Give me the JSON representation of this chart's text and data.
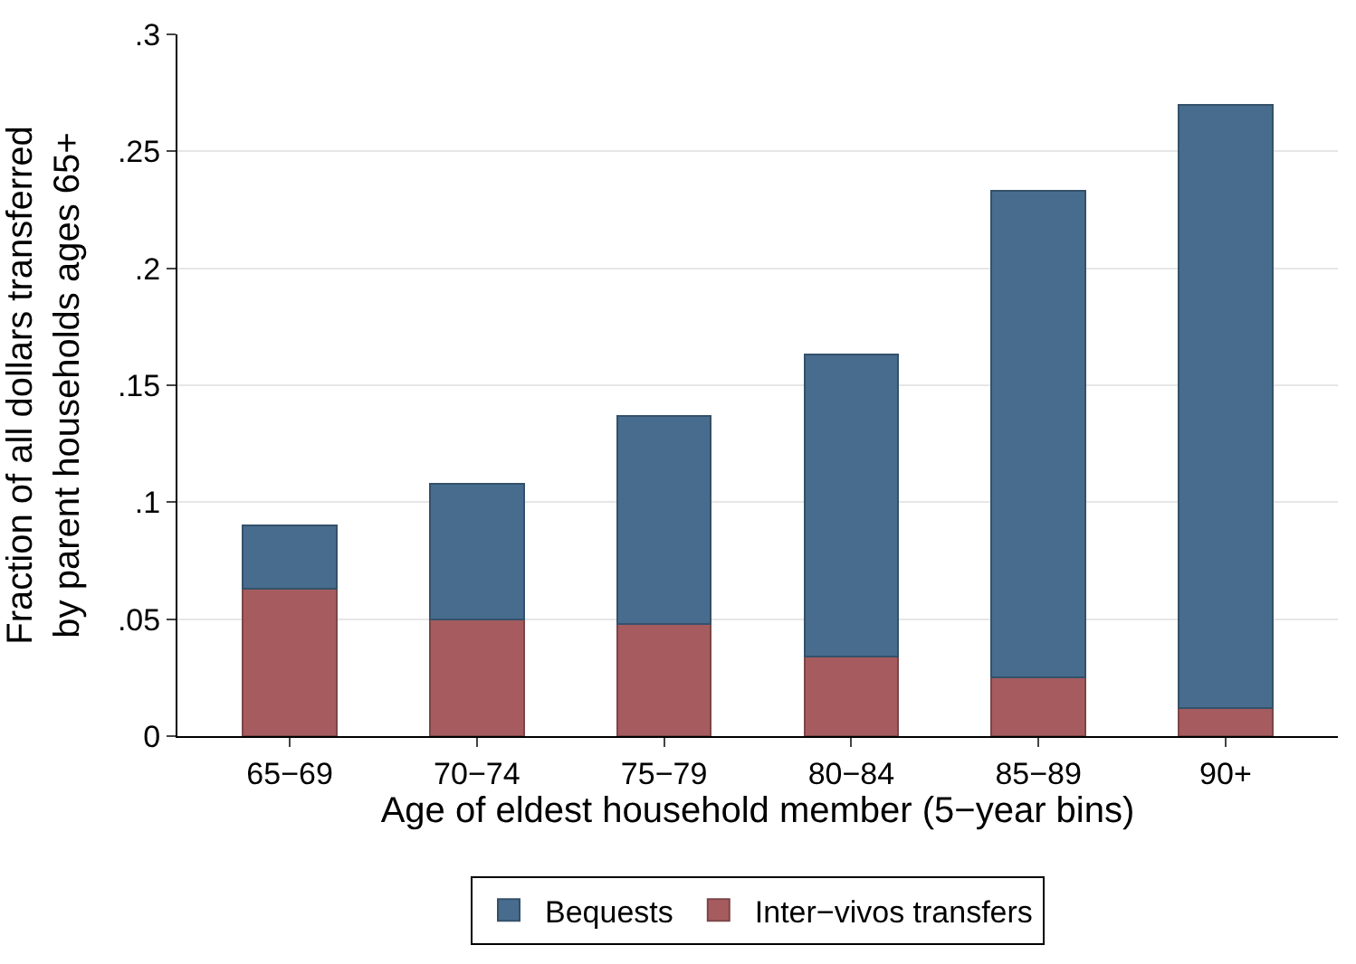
{
  "chart_data": {
    "type": "bar",
    "stacked": true,
    "xlabel": "Age of eldest household member (5−year bins)",
    "ylabel": "Fraction of all dollars transferred\nby parent households ages 65+",
    "categories": [
      "65−69",
      "70−74",
      "75−79",
      "80−84",
      "85−89",
      "90+"
    ],
    "series": [
      {
        "name": "Inter−vivos transfers",
        "color": "#a65c5f",
        "values": [
          0.063,
          0.05,
          0.048,
          0.034,
          0.025,
          0.012
        ]
      },
      {
        "name": "Bequests",
        "color": "#476c8e",
        "values": [
          0.027,
          0.058,
          0.089,
          0.129,
          0.208,
          0.258
        ]
      }
    ],
    "ylim": [
      0,
      0.3
    ],
    "yticks": [
      0,
      {
        "value": 0.05,
        "label": ".05"
      },
      {
        "value": 0.1,
        "label": ".1"
      },
      {
        "value": 0.15,
        "label": ".15"
      },
      {
        "value": 0.2,
        "label": ".2"
      },
      {
        "value": 0.25,
        "label": ".25"
      },
      {
        "value": 0.3,
        "label": ".3"
      }
    ],
    "grid": "y",
    "legend": "bottom"
  }
}
